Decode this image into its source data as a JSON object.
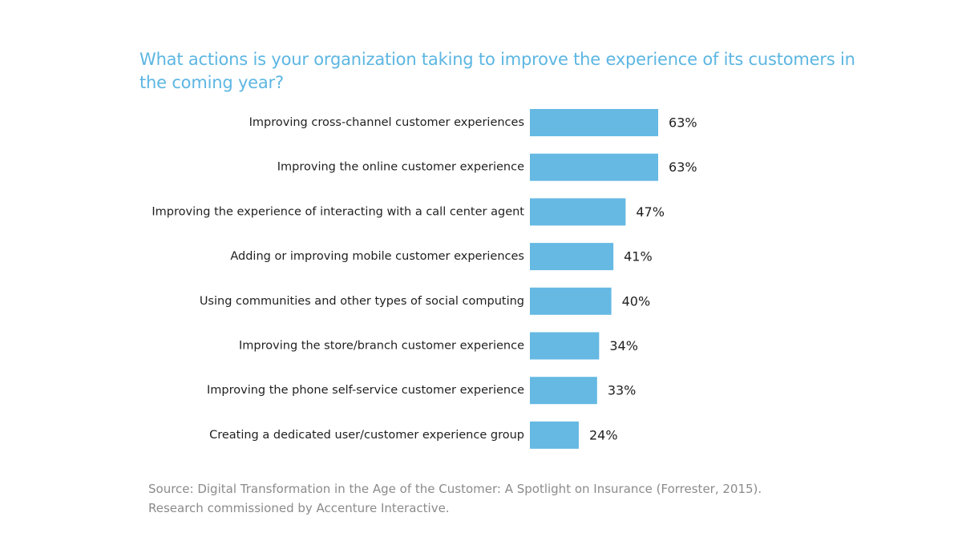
{
  "chart_data": {
    "type": "bar",
    "orientation": "horizontal",
    "title": "What actions is your organization taking to improve the experience of its customers in the coming year?",
    "categories": [
      "Improving cross-channel customer experiences",
      "Improving the online customer experience",
      "Improving the experience of interacting with a call center agent",
      "Adding or improving mobile customer experiences",
      "Using communities and other types of social computing",
      "Improving the store/branch customer experience",
      "Improving the phone self-service customer experience",
      "Creating a dedicated user/customer experience group"
    ],
    "values": [
      63,
      63,
      47,
      41,
      40,
      34,
      33,
      24
    ],
    "value_labels": [
      "63%",
      "63%",
      "47%",
      "41%",
      "40%",
      "34%",
      "33%",
      "24%"
    ],
    "unit": "%",
    "xlim": [
      0,
      100
    ],
    "grid": false,
    "xlabel": "",
    "ylabel": "",
    "bar_color": "#65b9e3"
  },
  "source": {
    "line1": "Source: Digital Transformation in the Age of the Customer: A Spotlight on Insurance (Forrester, 2015).",
    "line2": "Research commissioned by Accenture Interactive."
  }
}
